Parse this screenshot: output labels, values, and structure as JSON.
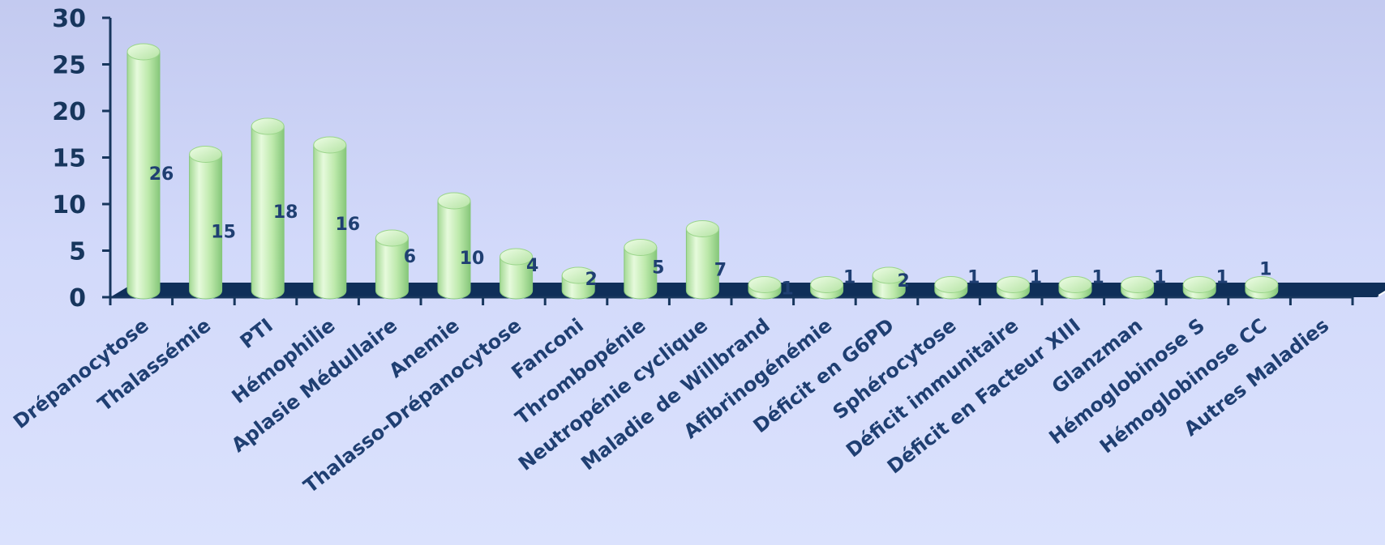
{
  "chart_data": {
    "type": "bar",
    "style": "3d-cylinder",
    "categories": [
      "Drépanocytose",
      "Thalassémie",
      "PTI",
      "Hémophilie",
      "Aplasie Médullaire",
      "Anemie",
      "Thalasso-Drépanocytose",
      "Fanconi",
      "Thrombopénie",
      "Neutropénie cyclique",
      "Maladie de Willbrand",
      "Afibrinogénémie",
      "Déficit en G6PD",
      "Sphérocytose",
      "Déficit immunitaire",
      "Déficit en Facteur XIII",
      "Glanzman",
      "Hémoglobinose S",
      "Hémoglobinose CC",
      "Autres Maladies"
    ],
    "values": [
      26,
      15,
      18,
      16,
      6,
      10,
      4,
      2,
      5,
      7,
      1,
      1,
      2,
      1,
      1,
      1,
      1,
      1,
      1,
      null
    ],
    "data_labels": [
      "26",
      "15",
      "18",
      "16",
      "6",
      "10",
      "4",
      "2",
      "5",
      "7",
      "1",
      "1",
      "2",
      "1",
      "1",
      "1",
      "1",
      "1",
      "1",
      ""
    ],
    "yticks": [
      "0",
      "5",
      "10",
      "15",
      "20",
      "25",
      "30"
    ],
    "ylim": [
      0,
      30
    ],
    "title": "",
    "xlabel": "",
    "ylabel": "",
    "grid": false,
    "legend": "none",
    "colors": {
      "bar": "#b8e6a6",
      "bar_highlight": "#e6fadc",
      "bar_shadow": "#7fbf73",
      "floor": "#0f2f59",
      "axis": "#17365d",
      "label": "#1f3f72"
    }
  }
}
